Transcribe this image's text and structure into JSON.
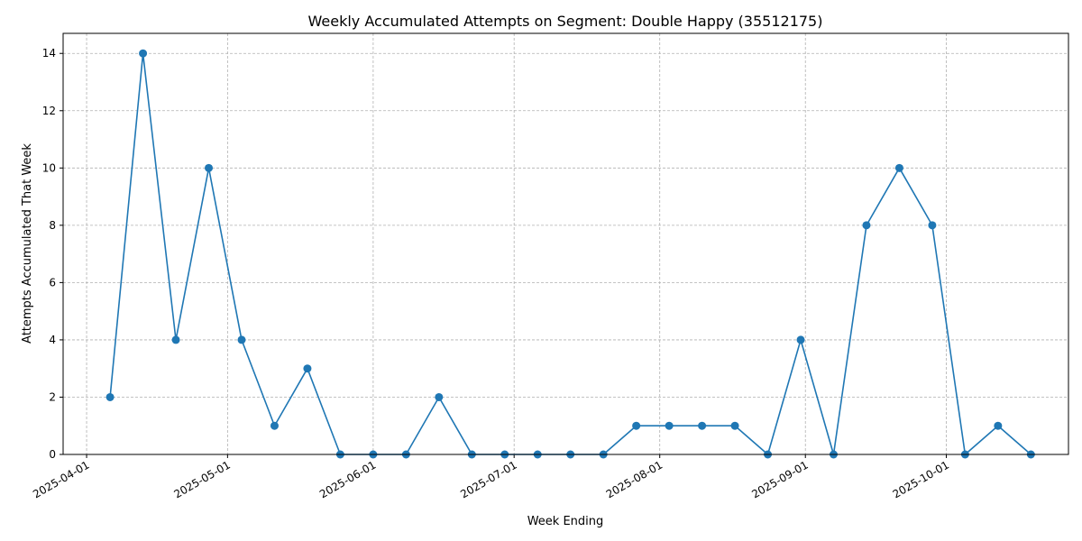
{
  "chart_data": {
    "type": "line",
    "title": "Weekly Accumulated Attempts on Segment: Double Happy (35512175)",
    "xlabel": "Week Ending",
    "ylabel": "Attempts Accumulated That Week",
    "x_ticks": [
      "2025-04-01",
      "2025-05-01",
      "2025-06-01",
      "2025-07-01",
      "2025-08-01",
      "2025-09-01",
      "2025-10-01"
    ],
    "y_ticks": [
      0,
      2,
      4,
      6,
      8,
      10,
      12,
      14
    ],
    "xlim": [
      "2025-03-27",
      "2025-10-27"
    ],
    "ylim": [
      0,
      14.7
    ],
    "grid": true,
    "color": "#1f77b4",
    "series": [
      {
        "x": [
          "2025-04-06",
          "2025-04-13",
          "2025-04-20",
          "2025-04-27",
          "2025-05-04",
          "2025-05-11",
          "2025-05-18",
          "2025-05-25",
          "2025-06-01",
          "2025-06-08",
          "2025-06-15",
          "2025-06-22",
          "2025-06-29",
          "2025-07-06",
          "2025-07-13",
          "2025-07-20",
          "2025-07-27",
          "2025-08-03",
          "2025-08-10",
          "2025-08-17",
          "2025-08-24",
          "2025-08-31",
          "2025-09-07",
          "2025-09-14",
          "2025-09-21",
          "2025-09-28",
          "2025-10-05",
          "2025-10-12",
          "2025-10-19"
        ],
        "values": [
          2,
          14,
          4,
          10,
          4,
          1,
          3,
          0,
          0,
          0,
          2,
          0,
          0,
          0,
          0,
          0,
          1,
          1,
          1,
          1,
          0,
          4,
          0,
          8,
          10,
          8,
          0,
          1,
          0
        ]
      }
    ]
  }
}
